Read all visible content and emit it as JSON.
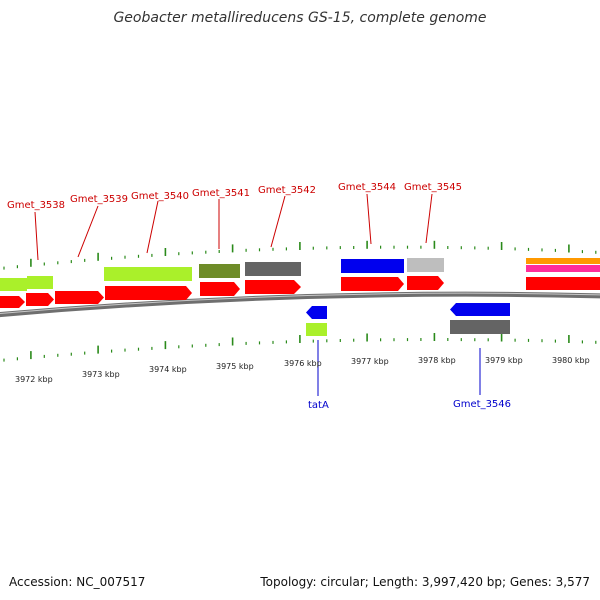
{
  "title": "Geobacter metallireducens GS-15, complete genome",
  "footer": {
    "accession": "Accession: NC_007517",
    "summary": "Topology: circular; Length: 3,997,420 bp; Genes: 3,577"
  },
  "scale_labels": [
    "3972 kbp",
    "3973 kbp",
    "3974 kbp",
    "3975 kbp",
    "3976 kbp",
    "3977 kbp",
    "3978 kbp",
    "3979 kbp",
    "3980 kbp"
  ],
  "gene_labels_forward": [
    "Gmet_3538",
    "Gmet_3539",
    "Gmet_3540",
    "Gmet_3541",
    "Gmet_3542",
    "Gmet_3544",
    "Gmet_3545"
  ],
  "gene_labels_reverse": [
    "tatA",
    "Gmet_3546"
  ],
  "colors": {
    "cds": "#ff0000",
    "gene_lime": "#aaf02a",
    "gene_olive": "#6e8c28",
    "gene_dark_gray": "#646464",
    "gene_light_gray": "#bebebe",
    "gene_blue": "#0000ee",
    "gene_orange": "#ff9900",
    "gene_pink": "#ff2d9a",
    "backbone": "#8a8a8a",
    "tick": "#2a8a1a",
    "label_forward": "#cc0000",
    "label_reverse": "#0000cc"
  }
}
